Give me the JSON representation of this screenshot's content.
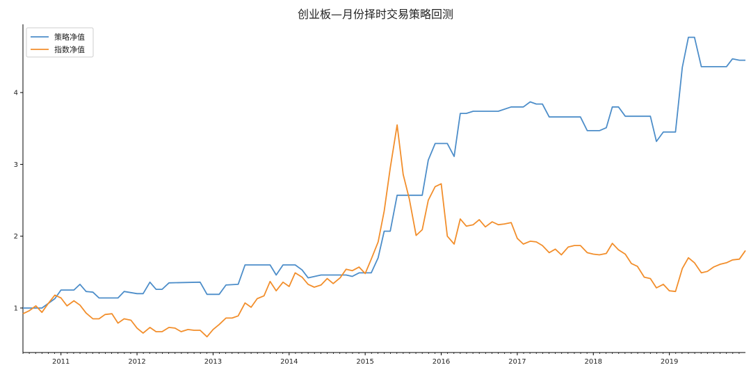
{
  "chart_data": {
    "type": "line",
    "title": "创业板—月份择时交易策略回测",
    "xlabel": "",
    "ylabel": "",
    "x_ticks": [
      "2011",
      "2012",
      "2013",
      "2014",
      "2015",
      "2016",
      "2017",
      "2018",
      "2019"
    ],
    "y_ticks": [
      1,
      2,
      3,
      4
    ],
    "xlim": [
      2010.5,
      2020.0
    ],
    "ylim": [
      0.38,
      4.95
    ],
    "grid": false,
    "legend_position": "top-left",
    "colors": {
      "策略净值": "#4C8DC9",
      "指数净值": "#F28E2B"
    },
    "series": [
      {
        "name": "策略净值",
        "color": "#4C8DC9",
        "points": [
          [
            2010.5,
            1.0
          ],
          [
            2010.75,
            1.0
          ],
          [
            2010.92,
            1.13
          ],
          [
            2011.0,
            1.25
          ],
          [
            2011.17,
            1.25
          ],
          [
            2011.25,
            1.33
          ],
          [
            2011.33,
            1.23
          ],
          [
            2011.42,
            1.22
          ],
          [
            2011.5,
            1.14
          ],
          [
            2011.75,
            1.14
          ],
          [
            2011.83,
            1.23
          ],
          [
            2012.0,
            1.2
          ],
          [
            2012.08,
            1.2
          ],
          [
            2012.17,
            1.36
          ],
          [
            2012.25,
            1.26
          ],
          [
            2012.33,
            1.26
          ],
          [
            2012.42,
            1.35
          ],
          [
            2012.83,
            1.36
          ],
          [
            2012.92,
            1.19
          ],
          [
            2013.08,
            1.19
          ],
          [
            2013.17,
            1.32
          ],
          [
            2013.33,
            1.33
          ],
          [
            2013.42,
            1.6
          ],
          [
            2013.75,
            1.6
          ],
          [
            2013.83,
            1.46
          ],
          [
            2013.92,
            1.6
          ],
          [
            2014.08,
            1.6
          ],
          [
            2014.17,
            1.53
          ],
          [
            2014.25,
            1.42
          ],
          [
            2014.42,
            1.46
          ],
          [
            2014.75,
            1.46
          ],
          [
            2014.83,
            1.44
          ],
          [
            2014.92,
            1.49
          ],
          [
            2015.08,
            1.49
          ],
          [
            2015.17,
            1.7
          ],
          [
            2015.25,
            2.07
          ],
          [
            2015.33,
            2.07
          ],
          [
            2015.42,
            2.57
          ],
          [
            2015.75,
            2.57
          ],
          [
            2015.83,
            3.06
          ],
          [
            2015.92,
            3.29
          ],
          [
            2016.08,
            3.29
          ],
          [
            2016.17,
            3.11
          ],
          [
            2016.25,
            3.71
          ],
          [
            2016.33,
            3.71
          ],
          [
            2016.42,
            3.74
          ],
          [
            2016.75,
            3.74
          ],
          [
            2016.92,
            3.8
          ],
          [
            2017.08,
            3.8
          ],
          [
            2017.17,
            3.87
          ],
          [
            2017.25,
            3.84
          ],
          [
            2017.33,
            3.84
          ],
          [
            2017.42,
            3.66
          ],
          [
            2017.83,
            3.66
          ],
          [
            2017.92,
            3.47
          ],
          [
            2018.08,
            3.47
          ],
          [
            2018.17,
            3.51
          ],
          [
            2018.25,
            3.8
          ],
          [
            2018.33,
            3.8
          ],
          [
            2018.42,
            3.67
          ],
          [
            2018.75,
            3.67
          ],
          [
            2018.83,
            3.32
          ],
          [
            2018.92,
            3.45
          ],
          [
            2019.08,
            3.45
          ],
          [
            2019.17,
            4.35
          ],
          [
            2019.25,
            4.77
          ],
          [
            2019.33,
            4.77
          ],
          [
            2019.42,
            4.36
          ],
          [
            2019.75,
            4.36
          ],
          [
            2019.83,
            4.47
          ],
          [
            2019.92,
            4.45
          ],
          [
            2020.0,
            4.45
          ]
        ]
      },
      {
        "name": "指数净值",
        "color": "#F28E2B",
        "points": [
          [
            2010.5,
            0.92
          ],
          [
            2010.58,
            0.96
          ],
          [
            2010.67,
            1.03
          ],
          [
            2010.75,
            0.94
          ],
          [
            2010.83,
            1.06
          ],
          [
            2010.92,
            1.18
          ],
          [
            2011.0,
            1.14
          ],
          [
            2011.08,
            1.03
          ],
          [
            2011.17,
            1.1
          ],
          [
            2011.25,
            1.04
          ],
          [
            2011.33,
            0.93
          ],
          [
            2011.42,
            0.85
          ],
          [
            2011.5,
            0.85
          ],
          [
            2011.58,
            0.91
          ],
          [
            2011.67,
            0.92
          ],
          [
            2011.75,
            0.79
          ],
          [
            2011.83,
            0.85
          ],
          [
            2011.92,
            0.83
          ],
          [
            2012.0,
            0.72
          ],
          [
            2012.08,
            0.65
          ],
          [
            2012.17,
            0.73
          ],
          [
            2012.25,
            0.67
          ],
          [
            2012.33,
            0.67
          ],
          [
            2012.42,
            0.73
          ],
          [
            2012.5,
            0.72
          ],
          [
            2012.58,
            0.67
          ],
          [
            2012.67,
            0.7
          ],
          [
            2012.75,
            0.69
          ],
          [
            2012.83,
            0.69
          ],
          [
            2012.92,
            0.6
          ],
          [
            2013.0,
            0.7
          ],
          [
            2013.08,
            0.77
          ],
          [
            2013.17,
            0.86
          ],
          [
            2013.25,
            0.86
          ],
          [
            2013.33,
            0.89
          ],
          [
            2013.42,
            1.07
          ],
          [
            2013.5,
            1.01
          ],
          [
            2013.58,
            1.13
          ],
          [
            2013.67,
            1.17
          ],
          [
            2013.75,
            1.37
          ],
          [
            2013.83,
            1.24
          ],
          [
            2013.92,
            1.36
          ],
          [
            2014.0,
            1.3
          ],
          [
            2014.08,
            1.49
          ],
          [
            2014.17,
            1.43
          ],
          [
            2014.25,
            1.33
          ],
          [
            2014.33,
            1.29
          ],
          [
            2014.42,
            1.32
          ],
          [
            2014.5,
            1.41
          ],
          [
            2014.58,
            1.34
          ],
          [
            2014.67,
            1.42
          ],
          [
            2014.75,
            1.54
          ],
          [
            2014.83,
            1.52
          ],
          [
            2014.92,
            1.57
          ],
          [
            2015.0,
            1.48
          ],
          [
            2015.08,
            1.68
          ],
          [
            2015.17,
            1.92
          ],
          [
            2015.25,
            2.35
          ],
          [
            2015.33,
            2.95
          ],
          [
            2015.42,
            3.55
          ],
          [
            2015.5,
            2.86
          ],
          [
            2015.58,
            2.52
          ],
          [
            2015.67,
            2.01
          ],
          [
            2015.75,
            2.09
          ],
          [
            2015.83,
            2.5
          ],
          [
            2015.92,
            2.69
          ],
          [
            2016.0,
            2.73
          ],
          [
            2016.08,
            2.0
          ],
          [
            2016.17,
            1.89
          ],
          [
            2016.25,
            2.24
          ],
          [
            2016.33,
            2.14
          ],
          [
            2016.42,
            2.16
          ],
          [
            2016.5,
            2.23
          ],
          [
            2016.58,
            2.13
          ],
          [
            2016.67,
            2.2
          ],
          [
            2016.75,
            2.16
          ],
          [
            2016.83,
            2.17
          ],
          [
            2016.92,
            2.19
          ],
          [
            2017.0,
            1.97
          ],
          [
            2017.08,
            1.89
          ],
          [
            2017.17,
            1.93
          ],
          [
            2017.25,
            1.92
          ],
          [
            2017.33,
            1.87
          ],
          [
            2017.42,
            1.77
          ],
          [
            2017.5,
            1.82
          ],
          [
            2017.58,
            1.74
          ],
          [
            2017.67,
            1.85
          ],
          [
            2017.75,
            1.87
          ],
          [
            2017.83,
            1.87
          ],
          [
            2017.92,
            1.77
          ],
          [
            2018.0,
            1.75
          ],
          [
            2018.08,
            1.74
          ],
          [
            2018.17,
            1.76
          ],
          [
            2018.25,
            1.9
          ],
          [
            2018.33,
            1.81
          ],
          [
            2018.42,
            1.75
          ],
          [
            2018.5,
            1.62
          ],
          [
            2018.58,
            1.58
          ],
          [
            2018.67,
            1.43
          ],
          [
            2018.75,
            1.41
          ],
          [
            2018.83,
            1.28
          ],
          [
            2018.92,
            1.33
          ],
          [
            2019.0,
            1.24
          ],
          [
            2019.08,
            1.23
          ],
          [
            2019.17,
            1.55
          ],
          [
            2019.25,
            1.7
          ],
          [
            2019.33,
            1.63
          ],
          [
            2019.42,
            1.49
          ],
          [
            2019.5,
            1.51
          ],
          [
            2019.58,
            1.57
          ],
          [
            2019.67,
            1.61
          ],
          [
            2019.75,
            1.63
          ],
          [
            2019.83,
            1.67
          ],
          [
            2019.92,
            1.68
          ],
          [
            2020.0,
            1.8
          ]
        ]
      }
    ]
  }
}
